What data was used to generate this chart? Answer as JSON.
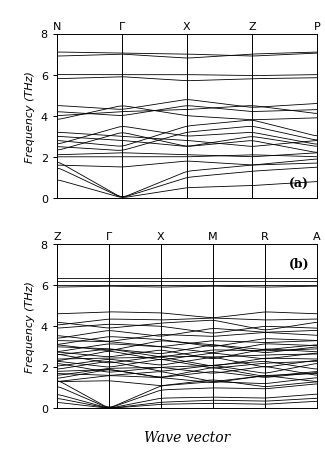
{
  "panel_a": {
    "kpoints_labels": [
      "N",
      "Γ",
      "X",
      "Z",
      "P"
    ],
    "kpoints_positions": [
      0,
      1,
      2,
      3,
      4
    ],
    "ylabel": "Frequency (THz)",
    "ylim": [
      0,
      8
    ],
    "yticks": [
      0,
      2,
      4,
      6,
      8
    ],
    "label": "(a)",
    "gamma_idx": 1
  },
  "panel_b": {
    "kpoints_labels": [
      "Z",
      "Γ",
      "X",
      "M",
      "R",
      "A"
    ],
    "kpoints_positions": [
      0,
      1,
      2,
      3,
      4,
      5
    ],
    "ylabel": "Frequency (THz)",
    "ylim": [
      0,
      8
    ],
    "yticks": [
      0,
      2,
      4,
      6,
      8
    ],
    "label": "(b)",
    "gamma_idx": 1
  },
  "xlabel": "Wave vector",
  "line_color": "#000000",
  "line_width": 0.6,
  "bg_color": "#ffffff"
}
